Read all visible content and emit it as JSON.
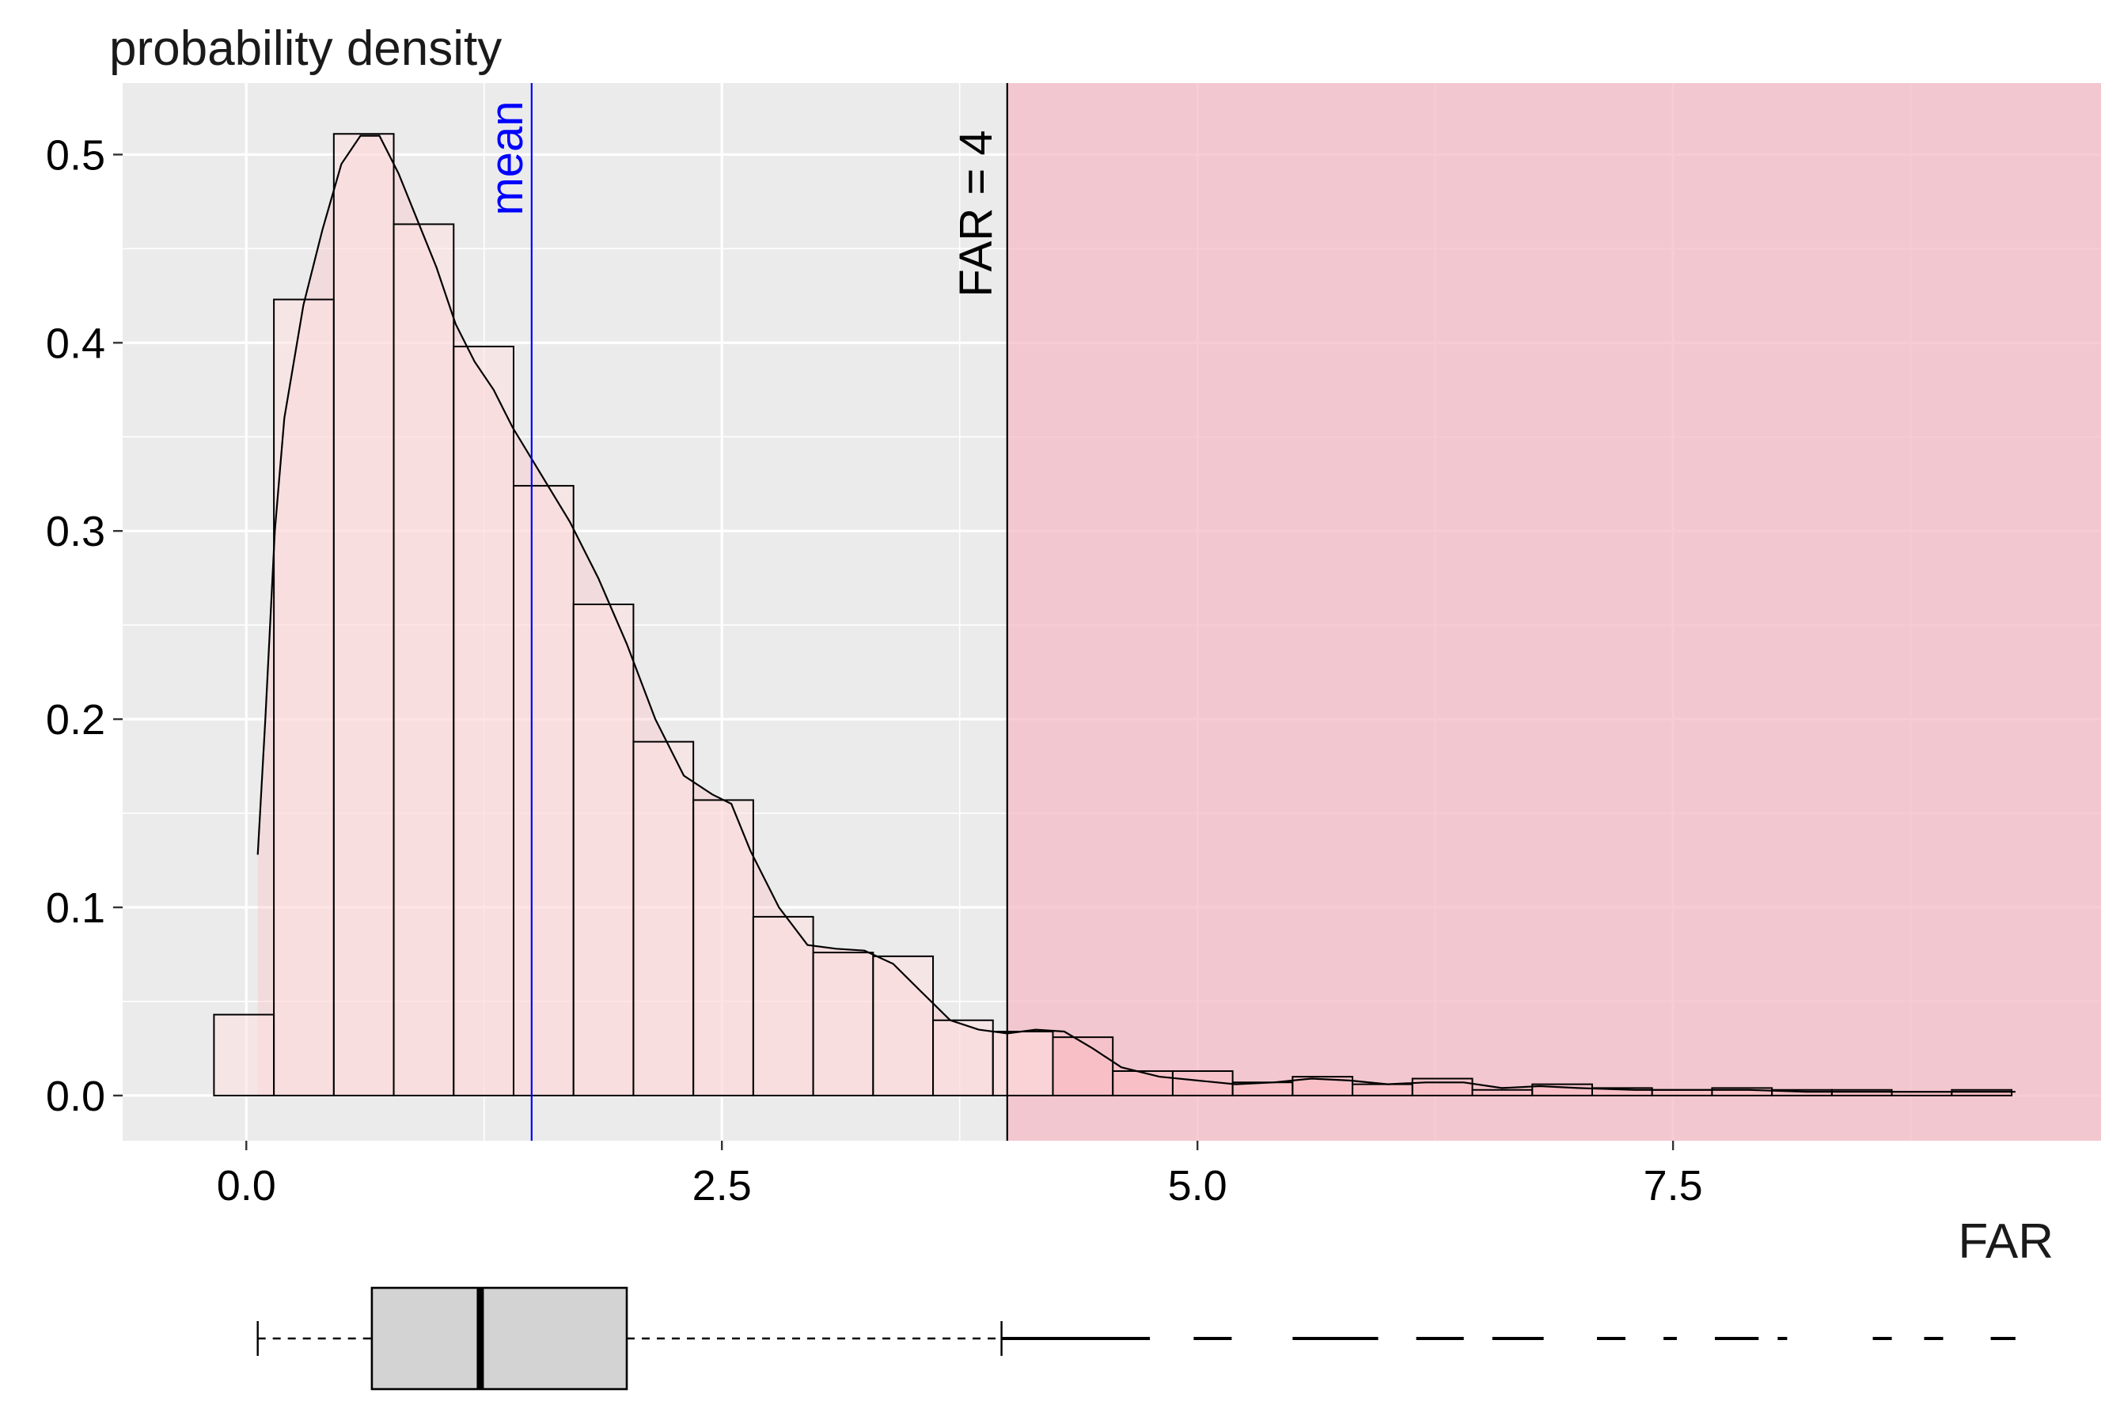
{
  "chart_data": {
    "type": "bar",
    "ylabel": "probability density",
    "xlabel": "FAR",
    "xlim": [
      -0.65,
      9.75
    ],
    "ylim": [
      -0.024,
      0.538
    ],
    "x_ticks": [
      0.0,
      2.5,
      5.0,
      7.5
    ],
    "x_tick_labels": [
      "0.0",
      "2.5",
      "5.0",
      "7.5"
    ],
    "y_ticks": [
      0.0,
      0.1,
      0.2,
      0.3,
      0.4,
      0.5
    ],
    "y_tick_labels": [
      "0.0",
      "0.1",
      "0.2",
      "0.3",
      "0.4",
      "0.5"
    ],
    "grid": true,
    "bin_width": 0.315,
    "bins": [
      {
        "x0": -0.17,
        "density": 0.043
      },
      {
        "x0": 0.145,
        "density": 0.423
      },
      {
        "x0": 0.46,
        "density": 0.511
      },
      {
        "x0": 0.775,
        "density": 0.463
      },
      {
        "x0": 1.09,
        "density": 0.398
      },
      {
        "x0": 1.405,
        "density": 0.324
      },
      {
        "x0": 1.72,
        "density": 0.261
      },
      {
        "x0": 2.035,
        "density": 0.188
      },
      {
        "x0": 2.35,
        "density": 0.157
      },
      {
        "x0": 2.665,
        "density": 0.095
      },
      {
        "x0": 2.98,
        "density": 0.076
      },
      {
        "x0": 3.295,
        "density": 0.074
      },
      {
        "x0": 3.61,
        "density": 0.04
      },
      {
        "x0": 3.925,
        "density": 0.034
      },
      {
        "x0": 4.24,
        "density": 0.031
      },
      {
        "x0": 4.555,
        "density": 0.013
      },
      {
        "x0": 4.87,
        "density": 0.013
      },
      {
        "x0": 5.185,
        "density": 0.007
      },
      {
        "x0": 5.5,
        "density": 0.01
      },
      {
        "x0": 5.815,
        "density": 0.006
      },
      {
        "x0": 6.13,
        "density": 0.009
      },
      {
        "x0": 6.445,
        "density": 0.003
      },
      {
        "x0": 6.76,
        "density": 0.006
      },
      {
        "x0": 7.075,
        "density": 0.004
      },
      {
        "x0": 7.39,
        "density": 0.003
      },
      {
        "x0": 7.705,
        "density": 0.004
      },
      {
        "x0": 8.02,
        "density": 0.003
      },
      {
        "x0": 8.335,
        "density": 0.003
      },
      {
        "x0": 8.65,
        "density": 0.002
      },
      {
        "x0": 8.965,
        "density": 0.003
      }
    ],
    "density_curve": [
      [
        0.06,
        0.128
      ],
      [
        0.1,
        0.2
      ],
      [
        0.15,
        0.3
      ],
      [
        0.2,
        0.36
      ],
      [
        0.3,
        0.42
      ],
      [
        0.4,
        0.46
      ],
      [
        0.5,
        0.495
      ],
      [
        0.6,
        0.51
      ],
      [
        0.7,
        0.51
      ],
      [
        0.8,
        0.49
      ],
      [
        0.9,
        0.465
      ],
      [
        1.0,
        0.44
      ],
      [
        1.1,
        0.41
      ],
      [
        1.2,
        0.39
      ],
      [
        1.3,
        0.375
      ],
      [
        1.4,
        0.355
      ],
      [
        1.55,
        0.33
      ],
      [
        1.7,
        0.305
      ],
      [
        1.85,
        0.275
      ],
      [
        2.0,
        0.24
      ],
      [
        2.15,
        0.2
      ],
      [
        2.3,
        0.17
      ],
      [
        2.45,
        0.16
      ],
      [
        2.55,
        0.155
      ],
      [
        2.65,
        0.13
      ],
      [
        2.8,
        0.1
      ],
      [
        2.95,
        0.08
      ],
      [
        3.1,
        0.078
      ],
      [
        3.25,
        0.077
      ],
      [
        3.4,
        0.07
      ],
      [
        3.55,
        0.055
      ],
      [
        3.7,
        0.04
      ],
      [
        3.85,
        0.035
      ],
      [
        4.0,
        0.033
      ],
      [
        4.15,
        0.035
      ],
      [
        4.3,
        0.034
      ],
      [
        4.45,
        0.025
      ],
      [
        4.6,
        0.015
      ],
      [
        4.8,
        0.01
      ],
      [
        5.0,
        0.008
      ],
      [
        5.2,
        0.006
      ],
      [
        5.4,
        0.007
      ],
      [
        5.6,
        0.009
      ],
      [
        5.8,
        0.008
      ],
      [
        6.0,
        0.006
      ],
      [
        6.2,
        0.007
      ],
      [
        6.4,
        0.007
      ],
      [
        6.6,
        0.004
      ],
      [
        6.8,
        0.005
      ],
      [
        7.0,
        0.004
      ],
      [
        7.3,
        0.003
      ],
      [
        7.6,
        0.003
      ],
      [
        7.9,
        0.003
      ],
      [
        8.2,
        0.002
      ],
      [
        8.5,
        0.002
      ],
      [
        8.8,
        0.002
      ],
      [
        9.0,
        0.002
      ],
      [
        9.3,
        0.002
      ]
    ],
    "mean": 1.5,
    "mean_label": "mean",
    "threshold": 4,
    "threshold_label": "FAR = 4",
    "boxplot": {
      "whisker_low": 0.06,
      "q1": 0.66,
      "median": 1.23,
      "q3": 2.0,
      "whisker_high": 3.97,
      "outlier_max": 9.3,
      "outlier_segments": [
        [
          3.97,
          4.75
        ],
        [
          4.98,
          5.18
        ],
        [
          5.5,
          5.95
        ],
        [
          6.15,
          6.4
        ],
        [
          6.55,
          6.82
        ],
        [
          7.1,
          7.25
        ],
        [
          7.45,
          7.52
        ],
        [
          7.72,
          7.95
        ],
        [
          8.05,
          8.1
        ],
        [
          8.55,
          8.65
        ],
        [
          8.82,
          8.92
        ],
        [
          9.17,
          9.3
        ]
      ]
    },
    "colors": {
      "panel_bg": "#ebebeb",
      "grid_major": "#ffffff",
      "bar_fill": "#fde0e0",
      "density_fill": "#fbbcc2",
      "threshold_region": "#f5b8c3",
      "mean_line": "#0000ff",
      "box_fill": "#d3d3d3"
    }
  }
}
